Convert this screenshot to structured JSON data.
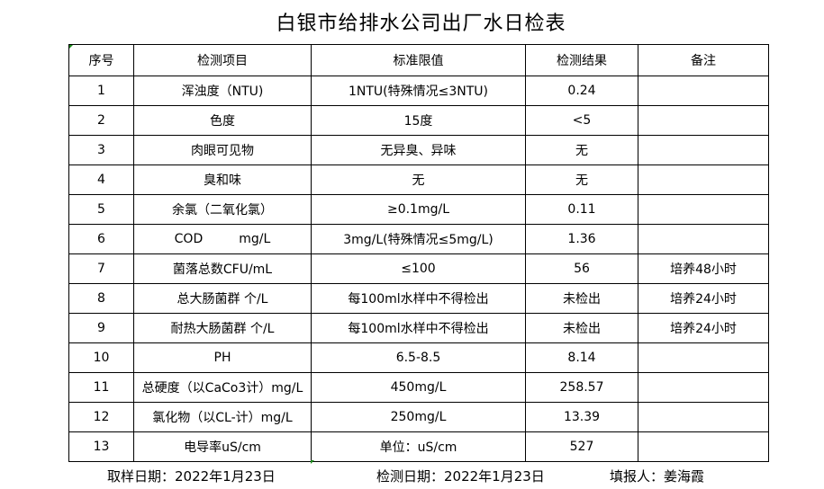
{
  "title": "白银市给排水公司出厂水日检表",
  "table": {
    "headers": [
      "序号",
      "检测项目",
      "标准限值",
      "检测结果",
      "备注"
    ],
    "rows": [
      [
        "1",
        "浑浊度（NTU)",
        "1NTU(特殊情况≤3NTU)",
        "0.24",
        ""
      ],
      [
        "2",
        "色度",
        "15度",
        "<5",
        ""
      ],
      [
        "3",
        "肉眼可见物",
        "无异臭、异味",
        "无",
        ""
      ],
      [
        "4",
        "臭和味",
        "无",
        "无",
        ""
      ],
      [
        "5",
        "余氯（二氧化氯）",
        "≥0.1mg/L",
        "0.11",
        ""
      ],
      [
        "6",
        "COD         mg/L",
        "3mg/L(特殊情况≤5mg/L)",
        "1.36",
        ""
      ],
      [
        "7",
        "菌落总数CFU/mL",
        "≤100",
        "56",
        "培养48小时"
      ],
      [
        "8",
        "总大肠菌群 个/L",
        "每100ml水样中不得检出",
        "未检出",
        "培养24小时"
      ],
      [
        "9",
        "耐热大肠菌群 个/L",
        "每100ml水样中不得检出",
        "未检出",
        "培养24小时"
      ],
      [
        "10",
        "PH",
        "6.5-8.5",
        "8.14",
        ""
      ],
      [
        "11",
        "总硬度（以CaCo3计）mg/L",
        "450mg/L",
        "258.57",
        ""
      ],
      [
        "12",
        "氯化物（以CL-计）mg/L",
        "250mg/L",
        "13.39",
        ""
      ],
      [
        "13",
        "电导率uS/cm",
        "单位：uS/cm",
        "527",
        ""
      ]
    ]
  },
  "footer": {
    "sampling_date": "取样日期：2022年1月23日",
    "test_date": "检测日期：2022年1月23日",
    "reporter": "填报人：姜海霞"
  },
  "colors": {
    "cell_marker": "#1a8a1a"
  }
}
